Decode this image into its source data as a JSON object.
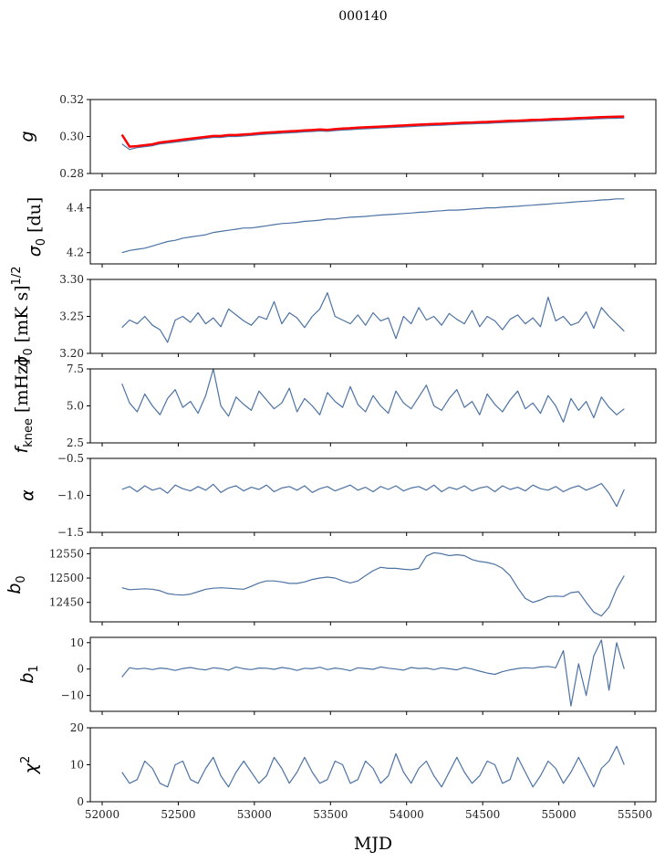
{
  "chart_data": {
    "type": "line",
    "title": "000140",
    "xlabel": "MJD",
    "xlim": [
      51930,
      55670
    ],
    "xticks": [
      52000,
      52500,
      53000,
      53500,
      54000,
      54500,
      55000,
      55500
    ],
    "x_start": 52130,
    "x_step": 50,
    "colors": {
      "blue": "#4c72a4",
      "red": "#ff0000"
    },
    "panels": [
      {
        "ylabel": {
          "sym": "g",
          "sub": "",
          "sup": "",
          "unit": ""
        },
        "ylim": [
          0.28,
          0.32
        ],
        "yticks": [
          "0.28",
          "0.30",
          "0.32"
        ],
        "series": [
          {
            "name": "g",
            "color": "blue",
            "values": [
              0.296,
              0.293,
              0.294,
              0.2945,
              0.295,
              0.296,
              0.2965,
              0.297,
              0.2975,
              0.298,
              0.2985,
              0.299,
              0.2995,
              0.2995,
              0.3,
              0.3,
              0.3003,
              0.3006,
              0.301,
              0.3013,
              0.3015,
              0.3018,
              0.302,
              0.3022,
              0.3025,
              0.3027,
              0.303,
              0.3028,
              0.3032,
              0.3035,
              0.3037,
              0.304,
              0.3042,
              0.3044,
              0.3046,
              0.3048,
              0.305,
              0.3052,
              0.3054,
              0.3056,
              0.3058,
              0.306,
              0.3061,
              0.3063,
              0.3065,
              0.3067,
              0.3068,
              0.307,
              0.3071,
              0.3073,
              0.3075,
              0.3077,
              0.3078,
              0.308,
              0.3082,
              0.3083,
              0.3085,
              0.3087,
              0.3088,
              0.309,
              0.3092,
              0.3093,
              0.3095,
              0.3097,
              0.3098,
              0.3099,
              0.31
            ]
          },
          {
            "name": "g_fit",
            "color": "red",
            "values": [
              0.301,
              0.2945,
              0.2948,
              0.2953,
              0.2958,
              0.2968,
              0.2973,
              0.2978,
              0.2983,
              0.2988,
              0.2993,
              0.2998,
              0.3003,
              0.3003,
              0.3008,
              0.3008,
              0.3011,
              0.3014,
              0.3018,
              0.3021,
              0.3023,
              0.3026,
              0.3028,
              0.303,
              0.3033,
              0.3035,
              0.3038,
              0.3036,
              0.304,
              0.3043,
              0.3045,
              0.3048,
              0.305,
              0.3052,
              0.3054,
              0.3056,
              0.3058,
              0.306,
              0.3062,
              0.3064,
              0.3066,
              0.3068,
              0.3069,
              0.3071,
              0.3073,
              0.3075,
              0.3076,
              0.3078,
              0.3079,
              0.3081,
              0.3083,
              0.3085,
              0.3086,
              0.3088,
              0.309,
              0.3091,
              0.3093,
              0.3095,
              0.3096,
              0.3098,
              0.31,
              0.3101,
              0.3103,
              0.3105,
              0.3106,
              0.3107,
              0.3108
            ]
          }
        ]
      },
      {
        "ylabel": {
          "sym": "σ",
          "sub": "0",
          "sup": "",
          "unit": " [du]"
        },
        "ylim": [
          4.15,
          4.48
        ],
        "yticks": [
          "4.2",
          "4.4"
        ],
        "series": [
          {
            "name": "sigma0_du",
            "color": "blue",
            "values": [
              4.2,
              4.21,
              4.215,
              4.22,
              4.23,
              4.24,
              4.25,
              4.255,
              4.265,
              4.27,
              4.275,
              4.28,
              4.29,
              4.295,
              4.3,
              4.305,
              4.31,
              4.31,
              4.315,
              4.32,
              4.325,
              4.33,
              4.332,
              4.335,
              4.34,
              4.342,
              4.345,
              4.35,
              4.35,
              4.355,
              4.358,
              4.36,
              4.362,
              4.365,
              4.368,
              4.37,
              4.372,
              4.375,
              4.377,
              4.38,
              4.382,
              4.385,
              4.387,
              4.39,
              4.39,
              4.392,
              4.395,
              4.397,
              4.4,
              4.4,
              4.403,
              4.405,
              4.407,
              4.41,
              4.412,
              4.415,
              4.417,
              4.42,
              4.422,
              4.425,
              4.428,
              4.43,
              4.432,
              4.435,
              4.437,
              4.44,
              4.44
            ]
          }
        ]
      },
      {
        "ylabel": {
          "sym": "σ",
          "sub": "0",
          "sup": "1/2",
          "unit": " [mK s]"
        },
        "ylim": [
          3.2,
          3.3
        ],
        "yticks": [
          "3.20",
          "3.25",
          "3.30"
        ],
        "series": [
          {
            "name": "sigma0_mK",
            "color": "blue",
            "values": [
              3.235,
              3.245,
              3.24,
              3.25,
              3.238,
              3.232,
              3.215,
              3.245,
              3.25,
              3.242,
              3.255,
              3.24,
              3.248,
              3.236,
              3.26,
              3.252,
              3.244,
              3.238,
              3.25,
              3.246,
              3.27,
              3.24,
              3.255,
              3.248,
              3.235,
              3.25,
              3.26,
              3.282,
              3.25,
              3.245,
              3.24,
              3.252,
              3.238,
              3.255,
              3.244,
              3.248,
              3.22,
              3.25,
              3.24,
              3.262,
              3.245,
              3.25,
              3.238,
              3.254,
              3.246,
              3.24,
              3.258,
              3.236,
              3.25,
              3.244,
              3.232,
              3.246,
              3.252,
              3.24,
              3.248,
              3.236,
              3.276,
              3.244,
              3.25,
              3.238,
              3.242,
              3.256,
              3.234,
              3.262,
              3.25,
              3.24,
              3.23
            ]
          }
        ]
      },
      {
        "ylabel": {
          "sym": "f",
          "sub": "knee",
          "sup": "",
          "unit": " [mHz]"
        },
        "ylim": [
          2.5,
          7.5
        ],
        "yticks": [
          "2.5",
          "5.0",
          "7.5"
        ],
        "series": [
          {
            "name": "fknee",
            "color": "blue",
            "values": [
              6.5,
              5.2,
              4.6,
              5.8,
              5.0,
              4.4,
              5.5,
              6.1,
              4.9,
              5.3,
              4.5,
              5.7,
              7.5,
              5.0,
              4.3,
              5.6,
              5.1,
              4.7,
              6.0,
              5.4,
              4.8,
              5.2,
              6.2,
              4.6,
              5.5,
              5.0,
              4.4,
              5.9,
              5.3,
              4.9,
              6.3,
              5.1,
              4.6,
              5.7,
              5.0,
              4.5,
              6.0,
              5.2,
              4.8,
              5.6,
              6.4,
              5.0,
              4.7,
              5.5,
              6.1,
              4.9,
              5.3,
              4.4,
              5.8,
              5.1,
              4.6,
              5.4,
              6.0,
              4.8,
              5.2,
              4.5,
              5.7,
              5.0,
              3.9,
              5.5,
              4.7,
              5.3,
              4.2,
              5.6,
              4.9,
              4.4,
              4.8
            ]
          }
        ]
      },
      {
        "ylabel": {
          "sym": "α",
          "sub": "",
          "sup": "",
          "unit": ""
        },
        "ylim": [
          -1.5,
          -0.5
        ],
        "yticks": [
          "−1.5",
          "−1.0",
          "−0.5"
        ],
        "series": [
          {
            "name": "alpha",
            "color": "blue",
            "values": [
              -0.92,
              -0.88,
              -0.95,
              -0.87,
              -0.93,
              -0.9,
              -0.97,
              -0.86,
              -0.91,
              -0.94,
              -0.88,
              -0.93,
              -0.85,
              -0.96,
              -0.9,
              -0.87,
              -0.94,
              -0.89,
              -0.92,
              -0.86,
              -0.95,
              -0.9,
              -0.88,
              -0.93,
              -0.87,
              -0.96,
              -0.91,
              -0.88,
              -0.94,
              -0.9,
              -0.86,
              -0.93,
              -0.89,
              -0.95,
              -0.88,
              -0.92,
              -0.87,
              -0.94,
              -0.9,
              -0.88,
              -0.93,
              -0.86,
              -0.95,
              -0.89,
              -0.92,
              -0.87,
              -0.94,
              -0.9,
              -0.88,
              -0.95,
              -0.87,
              -0.92,
              -0.89,
              -0.94,
              -0.86,
              -0.91,
              -0.93,
              -0.88,
              -0.95,
              -0.9,
              -0.87,
              -0.93,
              -0.89,
              -0.84,
              -0.97,
              -1.15,
              -0.92
            ]
          }
        ]
      },
      {
        "ylabel": {
          "sym": "b",
          "sub": "0",
          "sup": "",
          "unit": ""
        },
        "ylim": [
          12410,
          12562
        ],
        "yticks": [
          "12450",
          "12500",
          "12550"
        ],
        "series": [
          {
            "name": "b0",
            "color": "blue",
            "values": [
              12480,
              12476,
              12477,
              12478,
              12477,
              12474,
              12468,
              12466,
              12465,
              12467,
              12472,
              12477,
              12479,
              12480,
              12479,
              12478,
              12477,
              12483,
              12490,
              12494,
              12494,
              12492,
              12489,
              12489,
              12492,
              12497,
              12500,
              12502,
              12500,
              12494,
              12490,
              12494,
              12505,
              12515,
              12522,
              12520,
              12520,
              12518,
              12517,
              12520,
              12545,
              12552,
              12550,
              12546,
              12548,
              12546,
              12538,
              12534,
              12532,
              12528,
              12520,
              12505,
              12480,
              12458,
              12450,
              12455,
              12462,
              12463,
              12462,
              12470,
              12472,
              12450,
              12430,
              12422,
              12440,
              12478,
              12505
            ]
          }
        ]
      },
      {
        "ylabel": {
          "sym": "b",
          "sub": "1",
          "sup": "",
          "unit": ""
        },
        "ylim": [
          -16,
          12
        ],
        "yticks": [
          "−10",
          "0",
          "10"
        ],
        "series": [
          {
            "name": "b1",
            "color": "blue",
            "values": [
              -3,
              0.5,
              0,
              0.3,
              -0.2,
              0.4,
              0.1,
              -0.5,
              0.2,
              0.6,
              0,
              -0.3,
              0.5,
              0.2,
              -0.4,
              0.8,
              0.1,
              -0.2,
              0.4,
              0.3,
              -0.1,
              0.6,
              0.2,
              -0.5,
              0.3,
              0.1,
              0.7,
              -0.2,
              0.4,
              0,
              -0.6,
              0.5,
              0.2,
              -0.1,
              0.8,
              0.3,
              0,
              -0.4,
              0.6,
              0.2,
              0.4,
              -0.2,
              0.5,
              0.1,
              -0.3,
              0.6,
              0,
              -0.8,
              -1.5,
              -2,
              -1,
              -0.3,
              0.2,
              0.5,
              0.3,
              0.8,
              1,
              0.5,
              7,
              -14,
              2,
              -10,
              5,
              11,
              -8,
              10,
              0
            ]
          }
        ]
      },
      {
        "ylabel": {
          "sym": "χ",
          "sub": "",
          "sup": "2",
          "unit": ""
        },
        "ylim": [
          0,
          20
        ],
        "yticks": [
          "0",
          "10",
          "20"
        ],
        "series": [
          {
            "name": "chi2",
            "color": "blue",
            "values": [
              8,
              5,
              6,
              11,
              9,
              5,
              4,
              10,
              11,
              6,
              5,
              9,
              12,
              7,
              4,
              8,
              11,
              8,
              5,
              7,
              12,
              9,
              5,
              8,
              12,
              8,
              5,
              6,
              11,
              10,
              5,
              6,
              11,
              9,
              5,
              7,
              13,
              8,
              5,
              9,
              11,
              7,
              4,
              8,
              12,
              8,
              5,
              7,
              11,
              10,
              5,
              6,
              12,
              8,
              4,
              7,
              11,
              9,
              5,
              8,
              12,
              8,
              4,
              9,
              11,
              15,
              10
            ]
          }
        ]
      }
    ]
  }
}
